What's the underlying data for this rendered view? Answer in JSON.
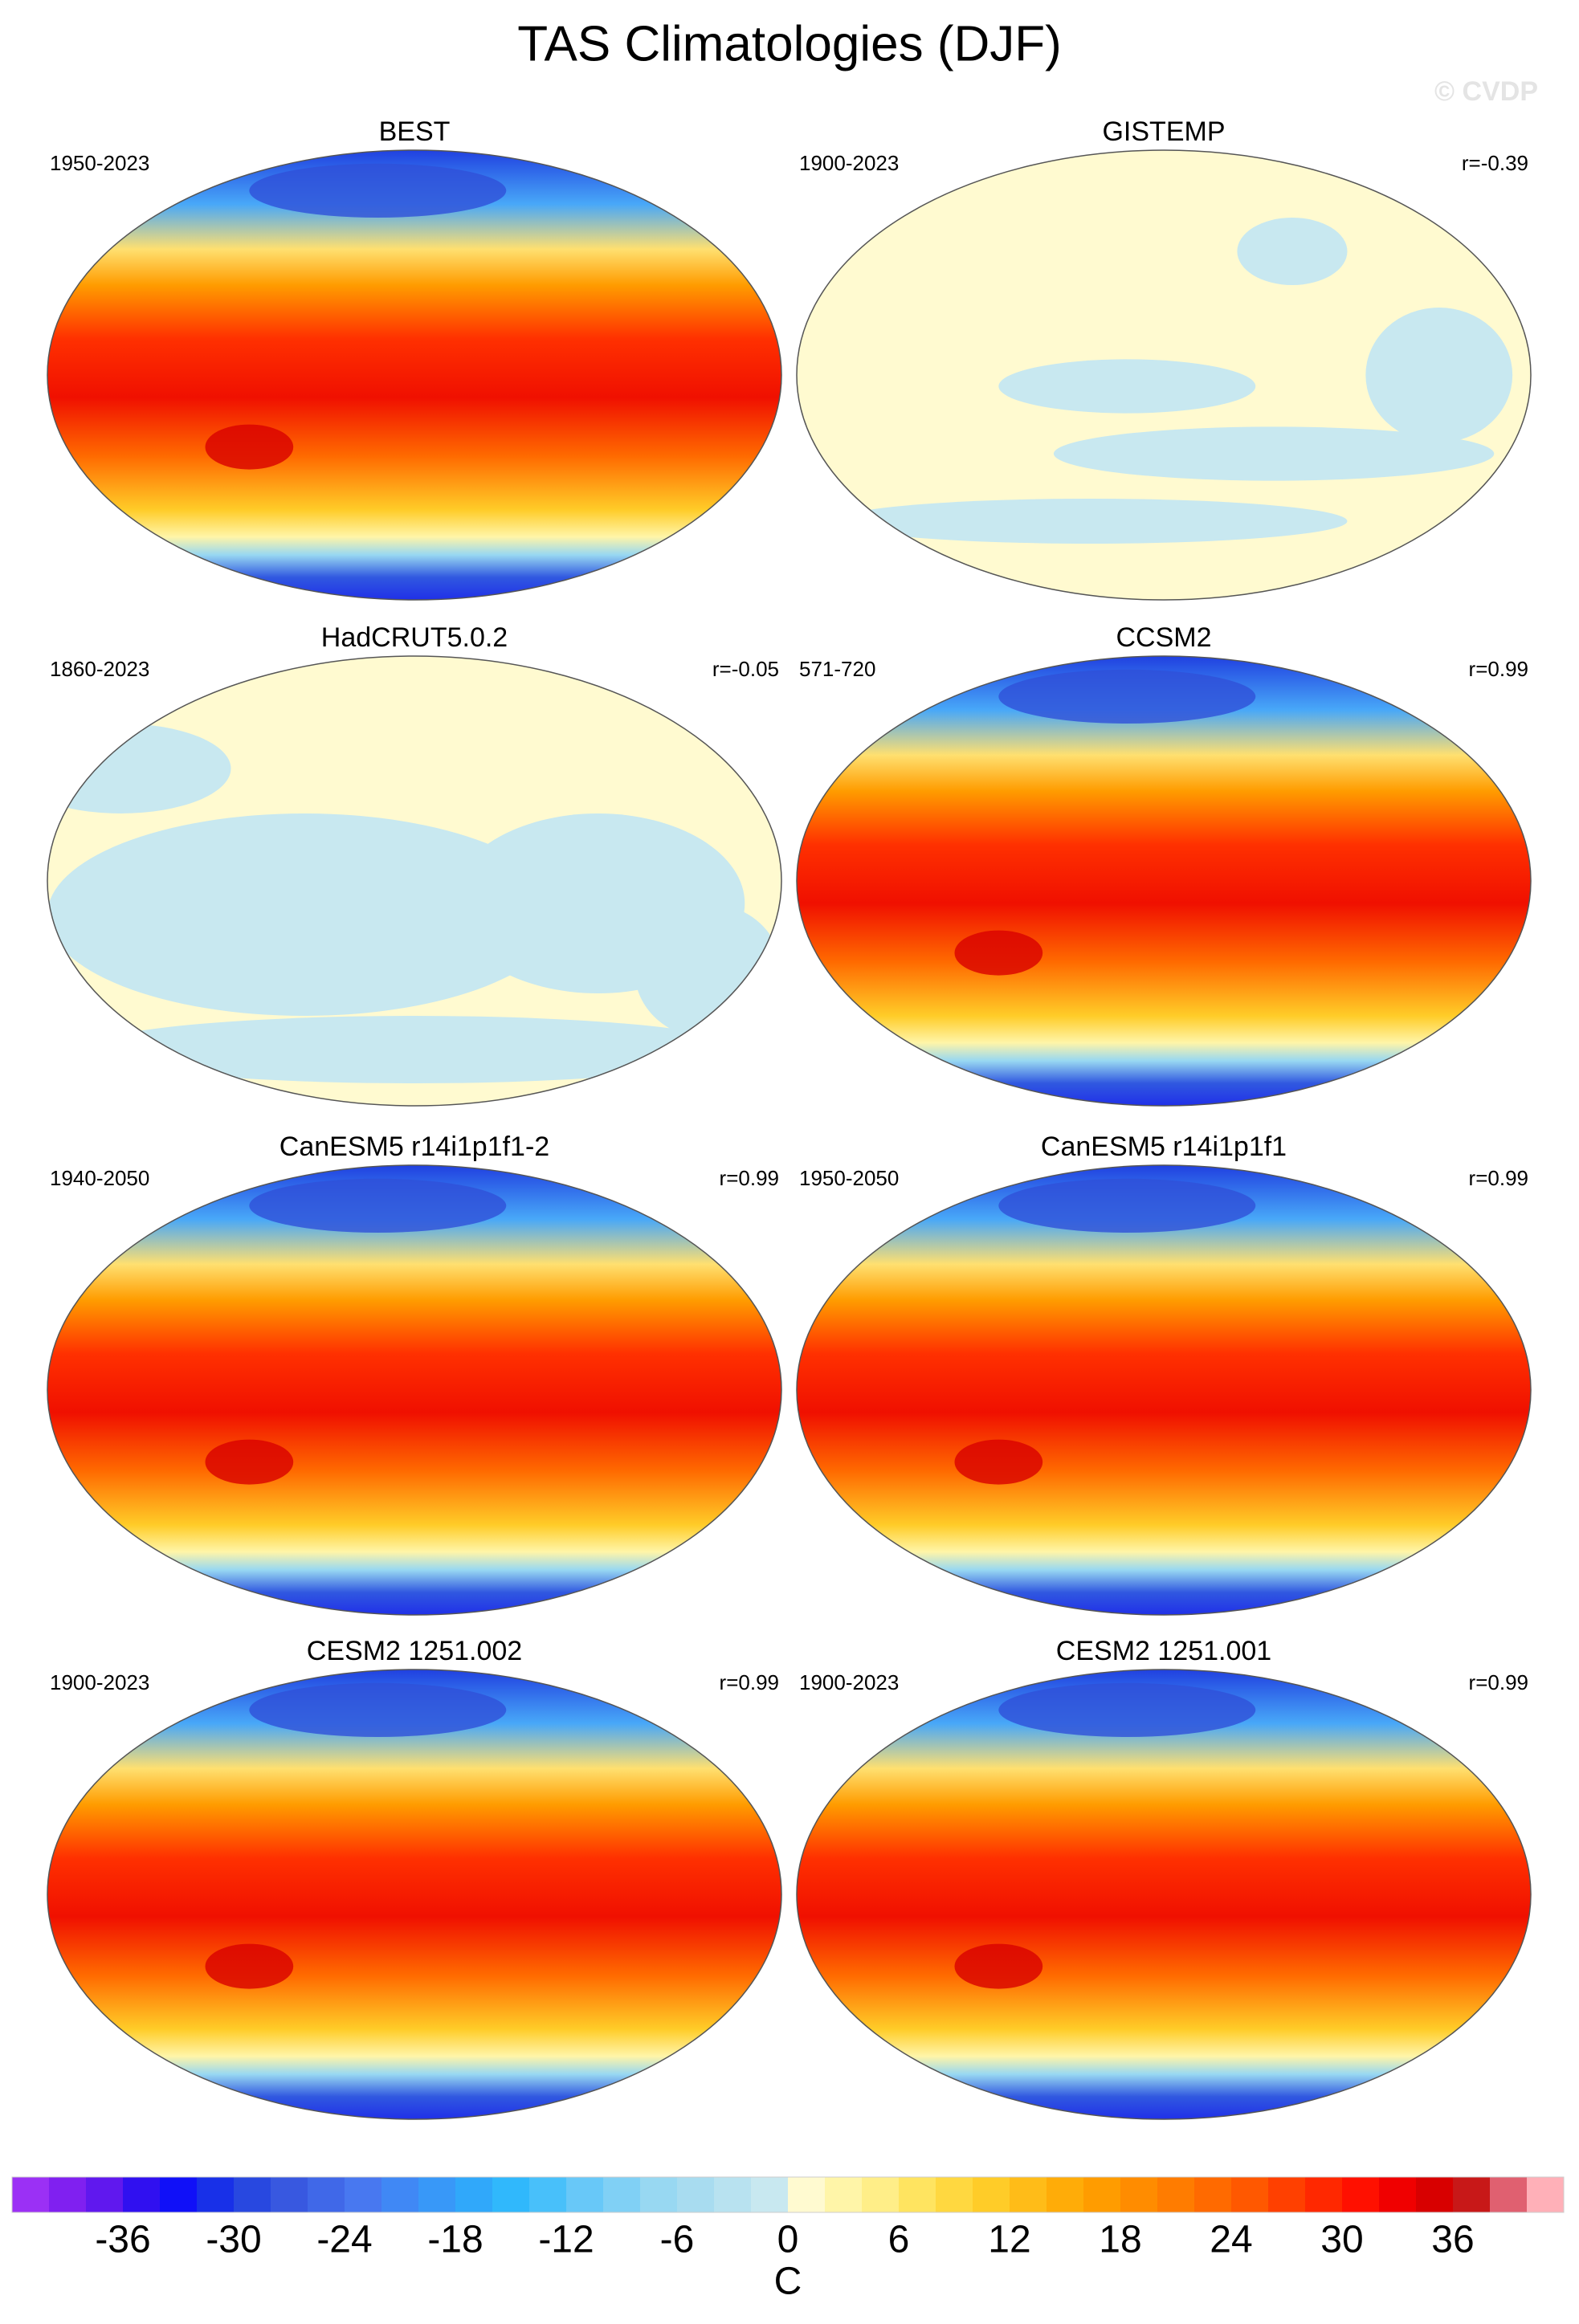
{
  "title": "TAS Climatologies (DJF)",
  "watermark": "© CVDP",
  "panels": [
    {
      "title": "BEST",
      "period": "1950-2023"
    },
    {
      "title": "GISTEMP",
      "period": "1900-2023",
      "stat": "r=-0.39"
    },
    {
      "title": "HadCRUT5.0.2",
      "period": "1860-2023",
      "stat": "r=-0.05"
    },
    {
      "title": "CCSM2",
      "period": "571-720",
      "stat": "r=0.99"
    },
    {
      "title": "CanESM5 r14i1p1f1-2",
      "period": "1940-2050",
      "stat": "r=0.99"
    },
    {
      "title": "CanESM5 r14i1p1f1",
      "period": "1950-2050",
      "stat": "r=0.99"
    },
    {
      "title": "CESM2 1251.002",
      "period": "1900-2023",
      "stat": "r=0.99"
    },
    {
      "title": "CESM2 1251.001",
      "period": "1900-2023",
      "stat": "r=0.99"
    }
  ],
  "colorbar": {
    "label": "C",
    "lim": [
      -42,
      42
    ],
    "ticks": [
      -36,
      -30,
      -24,
      -18,
      -12,
      -6,
      0,
      6,
      12,
      18,
      24,
      30,
      36
    ],
    "colors": [
      "#9b30f5",
      "#8020f0",
      "#6018ee",
      "#3010f0",
      "#1010f8",
      "#1830e8",
      "#2848e0",
      "#3858e0",
      "#4068e8",
      "#4878f0",
      "#4088f5",
      "#3898f8",
      "#30a8fa",
      "#30b8fc",
      "#48c0fa",
      "#68c8f8",
      "#80d0f5",
      "#98d8f2",
      "#a8dcf0",
      "#b8e2f0",
      "#c8e8f0",
      "#fffad0",
      "#fff5a8",
      "#ffee88",
      "#ffe460",
      "#ffd840",
      "#ffcc28",
      "#ffbc18",
      "#ffac08",
      "#ff9c00",
      "#ff8c00",
      "#ff7c00",
      "#ff6a00",
      "#ff5800",
      "#ff4000",
      "#ff2800",
      "#ff1000",
      "#f00000",
      "#d80000",
      "#c81818",
      "#e06070",
      "#ffb0b8"
    ]
  }
}
